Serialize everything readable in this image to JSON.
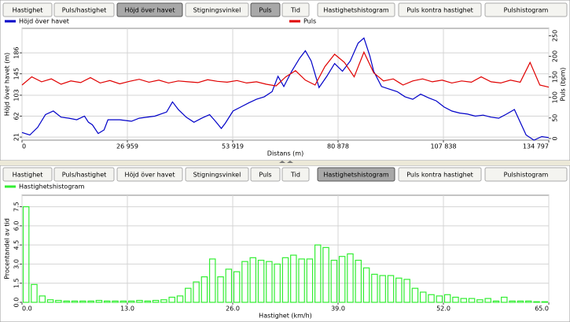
{
  "top_toolbar": {
    "buttons": [
      {
        "label": "Hastighet"
      },
      {
        "label": "Puls/hastighet"
      },
      {
        "label": "Höjd över havet",
        "pressed": true
      },
      {
        "label": "Stigningsvinkel"
      },
      {
        "label": "Puls",
        "pressed": true
      },
      {
        "label": "Tid"
      },
      {
        "label": "Hastighetshistogram"
      },
      {
        "label": "Puls kontra hastighet"
      },
      {
        "label": "Pulshistogram"
      }
    ]
  },
  "bottom_toolbar": {
    "buttons": [
      {
        "label": "Hastighet"
      },
      {
        "label": "Puls/hastighet"
      },
      {
        "label": "Höjd över havet"
      },
      {
        "label": "Stigningsvinkel"
      },
      {
        "label": "Puls"
      },
      {
        "label": "Tid"
      },
      {
        "label": "Hastighetshistogram",
        "pressed": true
      },
      {
        "label": "Puls kontra hastighet"
      },
      {
        "label": "Pulshistogram"
      }
    ]
  },
  "chart_data": [
    {
      "type": "line",
      "xlabel": "Distans (m)",
      "ylabel": "Höjd över havet (m)",
      "y2label": "Puls (bpm)",
      "grid": true,
      "xlim": [
        0,
        134797
      ],
      "ylim": [
        15,
        234
      ],
      "y2lim": [
        -4,
        268
      ],
      "xticks": [
        0,
        {
          "value": 26959,
          "label": "26 959"
        },
        {
          "value": 53919,
          "label": "53 919"
        },
        {
          "value": 80878,
          "label": "80 878"
        },
        {
          "value": 107838,
          "label": "107 838"
        },
        {
          "value": 134797,
          "label": "134 797"
        }
      ],
      "yticks": [
        21,
        62,
        103,
        145,
        186
      ],
      "y2ticks": [
        0,
        50,
        100,
        150,
        200,
        250
      ],
      "series": [
        {
          "name": "Höjd över havet",
          "color": "#0000c8",
          "x": [
            0,
            2000,
            4000,
            6000,
            8000,
            10000,
            12000,
            14000,
            16000,
            17000,
            18000,
            19500,
            21000,
            22000,
            25000,
            28000,
            30000,
            34000,
            37000,
            38500,
            40000,
            42000,
            44000,
            46000,
            48000,
            49500,
            51000,
            52000,
            54000,
            56000,
            58000,
            60000,
            62000,
            64000,
            65500,
            67000,
            69000,
            71000,
            72500,
            74000,
            76000,
            78000,
            80000,
            82000,
            84000,
            86000,
            87500,
            89000,
            90000,
            92000,
            94000,
            96000,
            98000,
            100000,
            102000,
            104000,
            106000,
            108000,
            110000,
            112000,
            114000,
            116000,
            118000,
            120000,
            122000,
            124000,
            126000,
            127500,
            129000,
            131000,
            133000,
            134797
          ],
          "values": [
            30,
            25,
            40,
            65,
            72,
            60,
            58,
            55,
            62,
            50,
            45,
            28,
            35,
            55,
            55,
            52,
            58,
            62,
            70,
            90,
            75,
            60,
            50,
            58,
            65,
            52,
            38,
            48,
            72,
            80,
            88,
            95,
            100,
            110,
            140,
            120,
            150,
            175,
            190,
            170,
            118,
            140,
            165,
            150,
            170,
            205,
            215,
            180,
            150,
            120,
            115,
            110,
            100,
            95,
            105,
            98,
            92,
            80,
            72,
            68,
            66,
            62,
            64,
            60,
            58,
            66,
            75,
            50,
            25,
            15,
            22,
            20
          ]
        },
        {
          "name": "Puls",
          "color": "#e00000",
          "axis": "y2",
          "x": [
            0,
            2500,
            5000,
            7500,
            10000,
            12500,
            15000,
            17500,
            20000,
            22500,
            25000,
            27500,
            30000,
            32500,
            35000,
            37500,
            40000,
            42500,
            45000,
            47500,
            50000,
            52500,
            55000,
            57500,
            60000,
            62500,
            65000,
            67500,
            70000,
            72500,
            75000,
            77500,
            80000,
            82500,
            85000,
            87500,
            90000,
            92500,
            95000,
            97500,
            100000,
            102500,
            105000,
            107500,
            110000,
            112500,
            115000,
            117500,
            120000,
            122500,
            125000,
            127500,
            130000,
            132500,
            134797
          ],
          "values": [
            130,
            150,
            138,
            145,
            132,
            140,
            136,
            148,
            135,
            141,
            133,
            139,
            144,
            137,
            142,
            135,
            140,
            138,
            136,
            143,
            139,
            137,
            141,
            135,
            138,
            132,
            128,
            150,
            165,
            142,
            130,
            175,
            205,
            185,
            150,
            210,
            160,
            140,
            145,
            130,
            140,
            145,
            138,
            142,
            135,
            140,
            137,
            150,
            138,
            135,
            142,
            137,
            185,
            130,
            125
          ]
        }
      ]
    },
    {
      "type": "histogram",
      "xlabel": "Hastighet (km/h)",
      "ylabel": "Procentandel av tid",
      "grid": true,
      "xlim": [
        0,
        65
      ],
      "ylim": [
        0,
        8.4
      ],
      "xticks": [
        {
          "value": 0,
          "label": "0.0"
        },
        {
          "value": 13,
          "label": "13.0"
        },
        {
          "value": 26,
          "label": "26.0"
        },
        {
          "value": 39,
          "label": "39.0"
        },
        {
          "value": 52,
          "label": "52.0"
        },
        {
          "value": 65,
          "label": "65.0"
        }
      ],
      "yticks": [
        {
          "value": 0,
          "label": "0.0"
        },
        1.5,
        {
          "value": 3,
          "label": "3.0"
        },
        4.5,
        {
          "value": 6,
          "label": "6.0"
        },
        7.5
      ],
      "series": [
        {
          "name": "Hastighetshistogram",
          "color": "#33ee33",
          "bins": [
            0,
            1,
            2,
            3,
            4,
            5,
            6,
            7,
            8,
            9,
            10,
            11,
            12,
            13,
            14,
            15,
            16,
            17,
            18,
            19,
            20,
            21,
            22,
            23,
            24,
            25,
            26,
            27,
            28,
            29,
            30,
            31,
            32,
            33,
            34,
            35,
            36,
            37,
            38,
            39,
            40,
            41,
            42,
            43,
            44,
            45,
            46,
            47,
            48,
            49,
            50,
            51,
            52,
            53,
            54,
            55,
            56,
            57,
            58,
            59,
            60,
            61,
            62,
            63,
            64,
            65
          ],
          "values": [
            7.5,
            1.4,
            0.5,
            0.2,
            0.15,
            0.1,
            0.1,
            0.1,
            0.1,
            0.15,
            0.1,
            0.1,
            0.1,
            0.1,
            0.15,
            0.1,
            0.15,
            0.2,
            0.4,
            0.5,
            1.1,
            1.6,
            2.0,
            3.4,
            2.0,
            2.6,
            2.4,
            3.2,
            3.5,
            3.3,
            3.2,
            3.0,
            3.5,
            3.7,
            3.4,
            3.4,
            4.5,
            4.3,
            3.3,
            3.6,
            3.8,
            3.3,
            2.7,
            2.2,
            2.1,
            2.1,
            1.9,
            1.8,
            1.1,
            0.8,
            0.6,
            0.5,
            0.6,
            0.4,
            0.3,
            0.3,
            0.2,
            0.3,
            0.1,
            0.4,
            0.1,
            0.1,
            0.1,
            0.05,
            0.05
          ]
        }
      ]
    }
  ]
}
